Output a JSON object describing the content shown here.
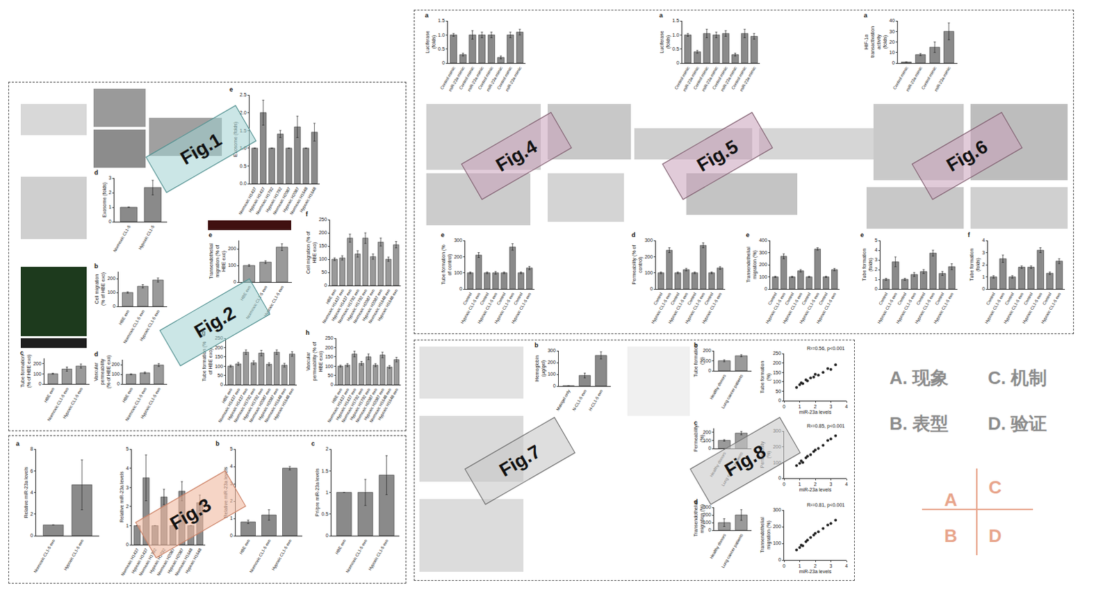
{
  "figure_labels": [
    "Fig.1",
    "Fig.2",
    "Fig.3",
    "Fig.4",
    "Fig.5",
    "Fig.6",
    "Fig.7",
    "Fig.8"
  ],
  "legend_items": [
    "A. 现象",
    "C. 机制",
    "B. 表型",
    "D. 验证"
  ],
  "quadrant_letters": [
    "A",
    "C",
    "B",
    "D"
  ],
  "chart_data": [
    {
      "type": "bar",
      "letter": "e",
      "y_title": "Exosome (folds)",
      "categories": [
        "Normoxic H1437",
        "Hypoxic H1437",
        "Normoxic H1792",
        "Hypoxic H1792",
        "Normoxic H2087",
        "Hypoxic H2087",
        "Normoxic H1648",
        "Hypoxic H1648"
      ],
      "values": [
        1,
        2.0,
        1,
        1.4,
        1,
        1.6,
        1,
        1.45
      ],
      "errors": [
        0,
        0.35,
        0,
        0.1,
        0,
        0.3,
        0,
        0.25
      ],
      "ylim": [
        0,
        2.5
      ],
      "yticks": [
        {
          "value": 0,
          "label": "0.0"
        },
        0.5,
        {
          "value": 1,
          "label": "1.0"
        },
        1.5,
        {
          "value": 2,
          "label": "2.0"
        },
        2.5
      ],
      "color": "#8a8a8a"
    },
    {
      "type": "bar",
      "letter": "d",
      "y_title": "Exosome (folds)",
      "categories": [
        "Normoxic CL1-5",
        "Hypoxic CL1-5"
      ],
      "values": [
        1,
        2.35
      ],
      "errors": [
        0,
        0.5
      ],
      "ylim": [
        0,
        3
      ],
      "yticks": [
        0,
        1,
        2,
        3
      ],
      "color": "#8a8a8a"
    },
    {
      "type": "bar",
      "letter": "f",
      "y_title": "Cell migration (% of HBE exo)",
      "categories": [
        "HBE exo",
        "Normoxic H1437 exo",
        "Hypoxic H1437 exo",
        "Normoxic H1792 exo",
        "Hypoxic H1792 exo",
        "Normoxic H2087 exo",
        "Hypoxic H2087 exo",
        "Normoxic H1648 exo",
        "Hypoxic H1648 exo"
      ],
      "values": [
        100,
        105,
        180,
        120,
        180,
        110,
        165,
        100,
        155
      ],
      "errors": [
        5,
        8,
        15,
        12,
        20,
        10,
        15,
        8,
        12
      ],
      "ylim": [
        0,
        250
      ],
      "yticks": [
        0,
        50,
        100,
        150,
        200,
        250
      ],
      "color": "#9a9a9a"
    },
    {
      "type": "bar",
      "letter": "g",
      "y_title": "Tube formation (% of HBE exo)",
      "categories": [
        "HBE exo",
        "Normoxic H1437 exo",
        "Hypoxic H1437 exo",
        "Normoxic H1792 exo",
        "Hypoxic H1792 exo",
        "Normoxic H2087 exo",
        "Hypoxic H2087 exo",
        "Normoxic H1648 exo",
        "Hypoxic H1648 exo"
      ],
      "values": [
        100,
        112,
        175,
        118,
        170,
        110,
        175,
        105,
        165
      ],
      "errors": [
        5,
        8,
        12,
        10,
        15,
        8,
        12,
        10,
        12
      ],
      "ylim": [
        0,
        250
      ],
      "yticks": [
        0,
        50,
        100,
        150,
        200,
        250
      ],
      "color": "#9a9a9a"
    },
    {
      "type": "bar",
      "letter": "h",
      "y_title": "Vascular permeability (% of HBE exo)",
      "categories": [
        "HBE exo",
        "Normoxic H1437 exo",
        "Hypoxic H1437 exo",
        "Normoxic H1792 exo",
        "Hypoxic H1792 exo",
        "Normoxic H2087 exo",
        "Hypoxic H2087 exo",
        "Normoxic H1648 exo",
        "Hypoxic H1648 exo"
      ],
      "values": [
        100,
        105,
        165,
        115,
        150,
        105,
        160,
        95,
        135
      ],
      "errors": [
        5,
        8,
        15,
        10,
        15,
        8,
        15,
        8,
        12
      ],
      "ylim": [
        0,
        250
      ],
      "yticks": [
        0,
        50,
        100,
        150,
        200,
        250
      ],
      "color": "#9a9a9a"
    },
    {
      "type": "bar",
      "letter": "b",
      "y_title": "Cell migration (% of HBE exo)",
      "categories": [
        "HBE exo",
        "Normoxic CL1-5 exo",
        "Hypoxic CL1-5 exo"
      ],
      "values": [
        100,
        145,
        190
      ],
      "errors": [
        5,
        12,
        15
      ],
      "ylim": [
        0,
        250
      ],
      "yticks": [
        0,
        100,
        200
      ],
      "color": "#9a9a9a"
    },
    {
      "type": "bar",
      "letter": "c",
      "y_title": "Tube formation (% of HBE exo)",
      "categories": [
        "HBE exo",
        "Normoxic CL1-5 exo",
        "Hypoxic CL1-5 exo"
      ],
      "values": [
        100,
        145,
        175
      ],
      "errors": [
        5,
        20,
        20
      ],
      "ylim": [
        0,
        250
      ],
      "yticks": [
        0,
        100,
        200
      ],
      "color": "#9a9a9a"
    },
    {
      "type": "bar",
      "letter": "d",
      "y_title": "Vascular permeability (% of HBE exo)",
      "categories": [
        "HBE exo",
        "Normoxic CL1-5 exo",
        "Hypoxic CL1-5 exo"
      ],
      "values": [
        100,
        115,
        195
      ],
      "errors": [
        5,
        8,
        15
      ],
      "ylim": [
        0,
        250
      ],
      "yticks": [
        0,
        100,
        200
      ],
      "color": "#9a9a9a"
    },
    {
      "type": "bar",
      "letter": "e",
      "y_title": "Transendothelial migration (% of HBE exo)",
      "categories": [
        "HBE exo",
        "Normoxic CL1-5 exo",
        "Hypoxic CL1-5 exo"
      ],
      "values": [
        100,
        120,
        210
      ],
      "errors": [
        5,
        8,
        20
      ],
      "ylim": [
        0,
        250
      ],
      "yticks": [
        0,
        100,
        200
      ],
      "color": "#9a9a9a"
    },
    {
      "type": "bar",
      "letter": "a",
      "y_title": "Relative miR-23a levels",
      "categories": [
        "Normoxic CL1-5 exo",
        "Hypoxic CL1-5 exo"
      ],
      "values": [
        1,
        4.7
      ],
      "errors": [
        0,
        2.3
      ],
      "ylim": [
        0,
        8
      ],
      "yticks": [
        0,
        2,
        4,
        6,
        8
      ],
      "color": "#8a8a8a"
    },
    {
      "type": "bar",
      "letter": "",
      "y_title": "Relative miR-23a levels",
      "categories": [
        "Normoxic H1437",
        "Hypoxic H1437",
        "Normoxic H1792",
        "Hypoxic H1792",
        "Normoxic H2087",
        "Hypoxic H2087",
        "Normoxic H1648",
        "Hypoxic H1648"
      ],
      "values": [
        1,
        3.5,
        1,
        2.5,
        1,
        2.8,
        1,
        2.2
      ],
      "errors": [
        0,
        1.2,
        0,
        0.4,
        0,
        0.5,
        0,
        0.4
      ],
      "ylim": [
        0,
        5
      ],
      "yticks": [
        0,
        1,
        2,
        3,
        4,
        5
      ],
      "color": "#8a8a8a"
    },
    {
      "type": "bar",
      "letter": "b",
      "y_title": "Relative miR-23a levels",
      "categories": [
        "HBE exo",
        "Normoxic CL1-5 exo",
        "Hypoxic CL1-5 exo"
      ],
      "values": [
        0.8,
        1.2,
        3.9
      ],
      "errors": [
        0.1,
        0.3,
        0.1
      ],
      "ylim": [
        0,
        5
      ],
      "yticks": [
        0,
        1,
        2,
        3,
        4,
        5
      ],
      "color": "#8a8a8a"
    },
    {
      "type": "bar",
      "letter": "c",
      "y_title": "Pri/pre miR-23a levels",
      "categories": [
        "HBE exo",
        "Normoxic CL1-5 exo",
        "Hypoxic CL1-5 exo"
      ],
      "values": [
        1,
        1,
        1.4
      ],
      "errors": [
        0,
        0.3,
        0.45
      ],
      "ylim": [
        0,
        2
      ],
      "yticks": [
        0,
        {
          "value": 0.5,
          "label": "0.5"
        },
        1,
        {
          "value": 1.5,
          "label": "1.5"
        },
        2
      ],
      "color": "#8a8a8a"
    },
    {
      "type": "bar",
      "letter": "a",
      "y_title": "Luciferase (folds)",
      "categories": [
        "Control mimic",
        "miR-23a mimic",
        "Control mimic",
        "miR-23a mimic",
        "Control mimic",
        "miR-23a mimic",
        "Control mimic",
        "miR-23a mimic"
      ],
      "values": [
        1,
        0.3,
        1,
        1,
        1,
        0.2,
        1,
        1.1
      ],
      "errors": [
        0.05,
        0.05,
        0.15,
        0.1,
        0.1,
        0.05,
        0.1,
        0.1
      ],
      "ylim": [
        0,
        1.5
      ],
      "yticks": [
        0,
        0.5,
        {
          "value": 1,
          "label": "1.0"
        },
        1.5
      ],
      "color": "#8a8a8a"
    },
    {
      "type": "bar",
      "letter": "a",
      "y_title": "Luciferase (folds)",
      "categories": [
        "Control mimic",
        "miR-23a mimic",
        "Control mimic",
        "miR-23a mimic",
        "Control mimic",
        "miR-23a mimic",
        "Control mimic",
        "miR-23a mimic"
      ],
      "values": [
        1,
        0.4,
        1.05,
        1,
        1.05,
        0.3,
        1.05,
        0.95
      ],
      "errors": [
        0.05,
        0.05,
        0.15,
        0.1,
        0.1,
        0.05,
        0.15,
        0.1
      ],
      "ylim": [
        0,
        1.5
      ],
      "yticks": [
        0,
        0.5,
        {
          "value": 1,
          "label": "1.0"
        },
        1.5
      ],
      "color": "#8a8a8a"
    },
    {
      "type": "bar",
      "letter": "a",
      "y_title": "HIF-1α transactivation activity (folds)",
      "categories": [
        "Control mimic",
        "miR-23a mimic",
        "Control mimic",
        "miR-23a mimic"
      ],
      "values": [
        1,
        8,
        15,
        30
      ],
      "errors": [
        0.2,
        1,
        5,
        8
      ],
      "ylim": [
        0,
        40
      ],
      "yticks": [
        0,
        10,
        20,
        30,
        40
      ],
      "color": "#8a8a8a"
    },
    {
      "type": "bar",
      "letter": "e",
      "y_title": "Tube formation (% of control)",
      "categories": [
        "Control",
        "Hypoxic CL1-5 exo",
        "Control",
        "Hypoxic CL1-5 exo",
        "Control",
        "Hypoxic CL1-5 exo",
        "Control",
        "Hypoxic CL1-5 exo"
      ],
      "values": [
        100,
        210,
        100,
        100,
        100,
        260,
        100,
        130
      ],
      "errors": [
        5,
        15,
        5,
        8,
        5,
        20,
        5,
        10
      ],
      "ylim": [
        0,
        300
      ],
      "yticks": [
        0,
        100,
        200,
        300
      ],
      "color": "#8a8a8a"
    },
    {
      "type": "bar",
      "letter": "d",
      "y_title": "Permeability (% of control)",
      "categories": [
        "Control",
        "Hypoxic CL1-5 exo",
        "Control",
        "Hypoxic CL1-5 exo",
        "Control",
        "Hypoxic CL1-5 exo",
        "Control",
        "Hypoxic CL1-5 exo"
      ],
      "values": [
        100,
        240,
        100,
        120,
        100,
        270,
        100,
        130
      ],
      "errors": [
        5,
        15,
        5,
        8,
        5,
        15,
        5,
        8
      ],
      "ylim": [
        0,
        300
      ],
      "yticks": [
        0,
        100,
        200,
        300
      ],
      "color": "#8a8a8a"
    },
    {
      "type": "bar",
      "letter": "e",
      "y_title": "Transendothelial migration (%)",
      "categories": [
        "Control",
        "Hypoxic CL1-5 exo",
        "Control",
        "Hypoxic CL1-5 exo",
        "Control",
        "Hypoxic CL1-5 exo",
        "Control",
        "Hypoxic CL1-5 exo"
      ],
      "values": [
        100,
        270,
        100,
        150,
        100,
        330,
        100,
        160
      ],
      "errors": [
        5,
        20,
        5,
        10,
        5,
        10,
        5,
        10
      ],
      "ylim": [
        0,
        400
      ],
      "yticks": [
        0,
        100,
        200,
        300,
        400
      ],
      "color": "#8a8a8a"
    },
    {
      "type": "bar",
      "letter": "e",
      "y_title": "Tube formation (folds)",
      "categories": [
        "Control",
        "Hypoxic CL1-5 exo",
        "Control",
        "Hypoxic CL1-5 exo",
        "Control",
        "Hypoxic CL1-5 exo",
        "Control",
        "Hypoxic CL1-5 exo"
      ],
      "values": [
        1,
        2.8,
        1,
        1.5,
        1.8,
        3.7,
        1.6,
        2.3
      ],
      "errors": [
        0.1,
        0.5,
        0.1,
        0.2,
        0.2,
        0.3,
        0.2,
        0.3
      ],
      "ylim": [
        0,
        5
      ],
      "yticks": [
        0,
        1,
        2,
        3,
        4,
        5
      ],
      "color": "#8a8a8a"
    },
    {
      "type": "bar",
      "letter": "f",
      "y_title": "Tube formation (folds)",
      "categories": [
        "Control",
        "Hypoxic CL1-5 exo",
        "Control",
        "Hypoxic CL1-5 exo",
        "Control",
        "Hypoxic CL1-5 exo",
        "Control",
        "Hypoxic CL1-5 exo"
      ],
      "values": [
        1,
        2.5,
        1,
        1.8,
        1.8,
        3.2,
        1.3,
        2.3
      ],
      "errors": [
        0.1,
        0.3,
        0.1,
        0.1,
        0.1,
        0.2,
        0.1,
        0.2
      ],
      "ylim": [
        0,
        4
      ],
      "yticks": [
        0,
        1,
        2,
        3,
        4
      ],
      "color": "#8a8a8a"
    },
    {
      "type": "bar",
      "letter": "b",
      "y_title": "Hemoglobin (μg/gel)",
      "categories": [
        "Matrigel only",
        "N-CL1-5 exo",
        "H-CL1-5 exo"
      ],
      "values": [
        2,
        90,
        260
      ],
      "errors": [
        1,
        20,
        30
      ],
      "ylim": [
        0,
        300
      ],
      "yticks": [
        0,
        100,
        200,
        300
      ],
      "color": "#8a8a8a"
    },
    {
      "type": "bar",
      "letter": "b",
      "y_title": "Tube formation (%)",
      "categories": [
        "Healthy donors",
        "Lung cancer patients"
      ],
      "values": [
        100,
        150
      ],
      "errors": [
        10,
        10
      ],
      "ylim": [
        0,
        200
      ],
      "yticks": [
        0,
        100,
        200
      ],
      "color": "#9a9a9a"
    },
    {
      "type": "bar",
      "letter": "c",
      "y_title": "Permeability (%)",
      "categories": [
        "Healthy donors",
        "Lung cancer patients"
      ],
      "values": [
        100,
        190
      ],
      "errors": [
        10,
        20
      ],
      "ylim": [
        0,
        250
      ],
      "yticks": [
        0,
        100,
        200
      ],
      "color": "#9a9a9a"
    },
    {
      "type": "bar",
      "letter": "d",
      "y_title": "Transendothelial migration (%)",
      "categories": [
        "Healthy donors",
        "Lung cancer patients"
      ],
      "values": [
        100,
        200
      ],
      "errors": [
        50,
        70
      ],
      "ylim": [
        0,
        300
      ],
      "yticks": [
        0,
        100,
        200,
        300
      ],
      "color": "#9a9a9a"
    },
    {
      "type": "scatter",
      "letter": "",
      "y_title": "Tube formation (%)",
      "x_title": "miR-23a levels",
      "annotation": "R²=0.56, p<0.001",
      "x": [
        0.8,
        1.0,
        1.1,
        1.2,
        1.4,
        1.5,
        1.7,
        1.9,
        2.0,
        2.2,
        2.5,
        2.8,
        3.0,
        3.3
      ],
      "values": [
        70,
        85,
        95,
        90,
        110,
        105,
        120,
        125,
        140,
        135,
        150,
        170,
        165,
        190
      ],
      "xlim": [
        0,
        4
      ],
      "xticks": [
        0,
        1,
        2,
        3,
        4
      ],
      "ylim": [
        0,
        250
      ],
      "yticks": [
        0,
        50,
        100,
        150,
        200,
        250
      ],
      "color": "#222222",
      "marker": "circle"
    },
    {
      "type": "scatter",
      "letter": "",
      "y_title": "Permeability (%)",
      "x_title": "miR-23a levels",
      "annotation": "R²=0.85, p<0.001",
      "x": [
        0.8,
        1.0,
        1.1,
        1.2,
        1.4,
        1.5,
        1.7,
        1.9,
        2.0,
        2.2,
        2.5,
        2.8,
        3.0,
        3.3
      ],
      "values": [
        80,
        95,
        110,
        100,
        130,
        140,
        150,
        170,
        180,
        190,
        210,
        240,
        250,
        270
      ],
      "xlim": [
        0,
        4
      ],
      "xticks": [
        0,
        1,
        2,
        3,
        4
      ],
      "ylim": [
        0,
        300
      ],
      "yticks": [
        0,
        100,
        200,
        300
      ],
      "color": "#222222",
      "marker": "circle"
    },
    {
      "type": "scatter",
      "letter": "",
      "y_title": "Transendothelial migration (%)",
      "x_title": "miR-23a levels",
      "annotation": "R²=0.81, p<0.001",
      "x": [
        0.8,
        1.0,
        1.1,
        1.2,
        1.4,
        1.5,
        1.7,
        1.9,
        2.0,
        2.2,
        2.5,
        2.8,
        3.0,
        3.3
      ],
      "values": [
        60,
        75,
        90,
        85,
        110,
        120,
        135,
        150,
        160,
        170,
        190,
        210,
        220,
        240
      ],
      "xlim": [
        0,
        4
      ],
      "xticks": [
        0,
        1,
        2,
        3,
        4
      ],
      "ylim": [
        0,
        300
      ],
      "yticks": [
        0,
        100,
        200,
        300
      ],
      "color": "#222222",
      "marker": "circle"
    }
  ]
}
